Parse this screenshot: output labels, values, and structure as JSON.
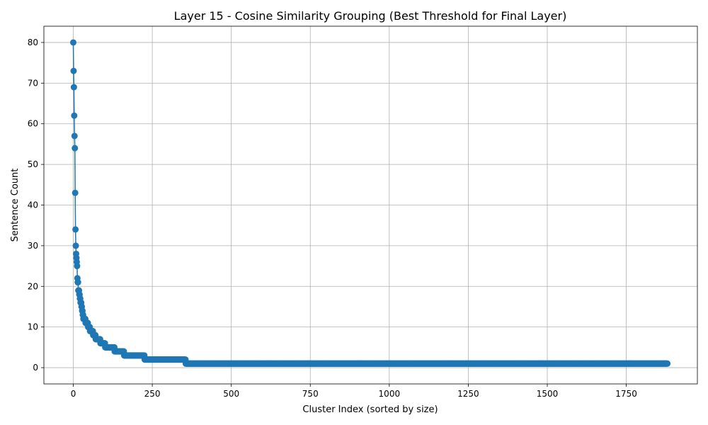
{
  "chart_data": {
    "type": "line",
    "title": "Layer 15 - Cosine Similarity Grouping (Best Threshold for Final Layer)",
    "xlabel": "Cluster Index (sorted by size)",
    "ylabel": "Sentence Count",
    "xlim": [
      -93,
      1975
    ],
    "ylim": [
      -4,
      84
    ],
    "xticks": [
      0,
      250,
      500,
      750,
      1000,
      1250,
      1500,
      1750
    ],
    "yticks": [
      0,
      10,
      20,
      30,
      40,
      50,
      60,
      70,
      80
    ],
    "grid": true,
    "color": "#1f77b4",
    "marker": "circle",
    "series": [
      {
        "segments": [
          {
            "x_start": 0,
            "x_end": 0,
            "value": 80
          },
          {
            "x_start": 1,
            "x_end": 1,
            "value": 73
          },
          {
            "x_start": 2,
            "x_end": 2,
            "value": 69
          },
          {
            "x_start": 3,
            "x_end": 3,
            "value": 62
          },
          {
            "x_start": 4,
            "x_end": 4,
            "value": 57
          },
          {
            "x_start": 5,
            "x_end": 5,
            "value": 54
          },
          {
            "x_start": 6,
            "x_end": 6,
            "value": 43
          },
          {
            "x_start": 7,
            "x_end": 7,
            "value": 34
          },
          {
            "x_start": 8,
            "x_end": 8,
            "value": 30
          },
          {
            "x_start": 9,
            "x_end": 9,
            "value": 28
          },
          {
            "x_start": 10,
            "x_end": 10,
            "value": 27
          },
          {
            "x_start": 11,
            "x_end": 11,
            "value": 26
          },
          {
            "x_start": 12,
            "x_end": 12,
            "value": 25
          },
          {
            "x_start": 13,
            "x_end": 13,
            "value": 22
          },
          {
            "x_start": 14,
            "x_end": 15,
            "value": 21
          },
          {
            "x_start": 16,
            "x_end": 18,
            "value": 19
          },
          {
            "x_start": 19,
            "x_end": 20,
            "value": 18
          },
          {
            "x_start": 21,
            "x_end": 22,
            "value": 17
          },
          {
            "x_start": 23,
            "x_end": 25,
            "value": 16
          },
          {
            "x_start": 26,
            "x_end": 27,
            "value": 15
          },
          {
            "x_start": 28,
            "x_end": 29,
            "value": 14
          },
          {
            "x_start": 30,
            "x_end": 31,
            "value": 13
          },
          {
            "x_start": 32,
            "x_end": 38,
            "value": 12
          },
          {
            "x_start": 39,
            "x_end": 46,
            "value": 11
          },
          {
            "x_start": 47,
            "x_end": 52,
            "value": 10
          },
          {
            "x_start": 53,
            "x_end": 62,
            "value": 9
          },
          {
            "x_start": 63,
            "x_end": 70,
            "value": 8
          },
          {
            "x_start": 71,
            "x_end": 85,
            "value": 7
          },
          {
            "x_start": 86,
            "x_end": 100,
            "value": 6
          },
          {
            "x_start": 101,
            "x_end": 130,
            "value": 5
          },
          {
            "x_start": 131,
            "x_end": 160,
            "value": 4
          },
          {
            "x_start": 161,
            "x_end": 225,
            "value": 3
          },
          {
            "x_start": 226,
            "x_end": 355,
            "value": 2
          },
          {
            "x_start": 356,
            "x_end": 1880,
            "value": 1
          }
        ]
      }
    ]
  }
}
